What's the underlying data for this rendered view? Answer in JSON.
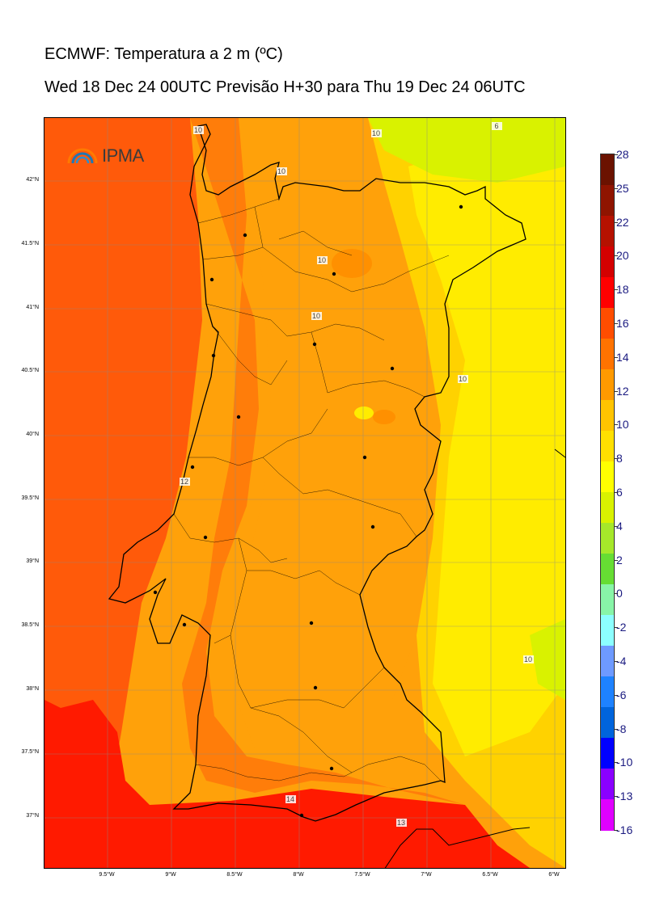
{
  "titles": {
    "line1": "ECMWF: Temperatura a 2 m (ºC)",
    "line2": "Wed 18 Dec 24 00UTC Previsão H+30 para Thu 19 Dec 24 06UTC"
  },
  "logo": {
    "text": "IPMA"
  },
  "axes": {
    "latitudes": [
      "42°N",
      "41.5°N",
      "41°N",
      "40.5°N",
      "40°N",
      "39.5°N",
      "39°N",
      "38.5°N",
      "38°N",
      "37.5°N",
      "37°N"
    ],
    "longitudes": [
      "9.5°W",
      "9°W",
      "8.5°W",
      "8°W",
      "7.5°W",
      "7°W",
      "6.5°W",
      "6°W"
    ]
  },
  "colorbar": {
    "ticks": [
      "28",
      "25",
      "22",
      "20",
      "18",
      "16",
      "14",
      "12",
      "10",
      "8",
      "6",
      "4",
      "2",
      "0",
      "-2",
      "-4",
      "-6",
      "-8",
      "-10",
      "-13",
      "-16"
    ],
    "colors": [
      "#6b1200",
      "#8f1400",
      "#b51100",
      "#d40000",
      "#ff0000",
      "#ff4d00",
      "#ff7300",
      "#ff9a00",
      "#ffc400",
      "#ffe000",
      "#ffff00",
      "#d9f200",
      "#a6e82a",
      "#66dd33",
      "#88f5a8",
      "#8cffff",
      "#6e9aff",
      "#1e82ff",
      "#0064dc",
      "#0000ff",
      "#8a00ff",
      "#e000ff"
    ]
  },
  "contour_labels": [
    "10",
    "10",
    "6",
    "10",
    "10",
    "10",
    "12",
    "10",
    "14",
    "13",
    "10"
  ],
  "colors": {
    "sea_south": "#ff1a00",
    "sea": "#ff5a0a",
    "warm": "#ff7d0a",
    "mild": "#ffa10a",
    "cool": "#ffd200",
    "cooler": "#ffec00",
    "cold": "#d9f200"
  }
}
